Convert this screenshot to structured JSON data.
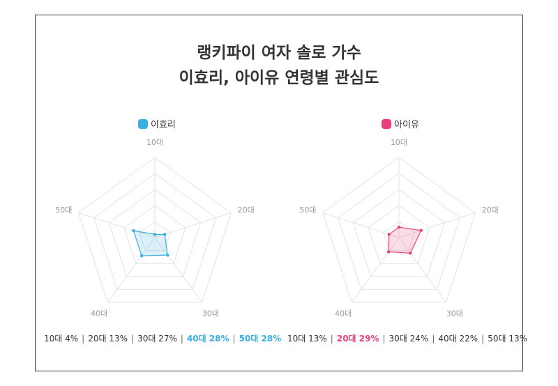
{
  "title_line1": "랭키파이 여자 솔로 가수",
  "title_line2": "이효리, 아이유 연령별 관심도",
  "chart_data": [
    {
      "type": "radar",
      "legend": "이효리",
      "color": "#3aaee0",
      "axes": [
        "10대",
        "20대",
        "30대",
        "40대",
        "50대"
      ],
      "values": [
        4,
        13,
        27,
        28,
        28
      ],
      "rmax": 100,
      "summary": [
        {
          "text": "10대 4%",
          "highlight": false
        },
        {
          "text": "20대 13%",
          "highlight": false
        },
        {
          "text": "30대 27%",
          "highlight": false
        },
        {
          "text": "40대 28%",
          "highlight": true
        },
        {
          "text": "50대 28%",
          "highlight": true
        }
      ]
    },
    {
      "type": "radar",
      "legend": "아이유",
      "color": "#e8407f",
      "axes": [
        "10대",
        "20대",
        "30대",
        "40대",
        "50대"
      ],
      "values": [
        13,
        29,
        24,
        22,
        13
      ],
      "rmax": 100,
      "summary": [
        {
          "text": "10대 13%",
          "highlight": false
        },
        {
          "text": "20대 29%",
          "highlight": true
        },
        {
          "text": "30대 24%",
          "highlight": false
        },
        {
          "text": "40대 22%",
          "highlight": false
        },
        {
          "text": "50대 13%",
          "highlight": false
        }
      ]
    }
  ]
}
